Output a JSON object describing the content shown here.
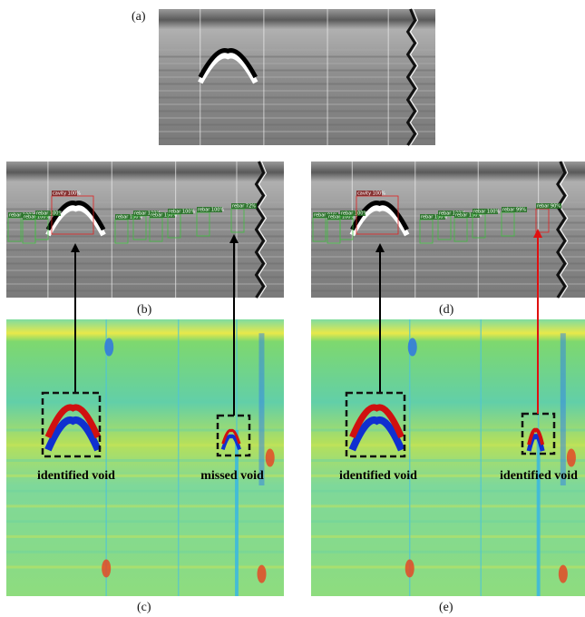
{
  "panels": {
    "a": {
      "label": "(a)"
    },
    "b": {
      "label": "(b)",
      "detections": [
        "rebar 100%",
        "rebar 100%",
        "rebar 100%",
        "cavity 100%",
        "rebar 100%",
        "rebar 100%",
        "rebar 100%",
        "rebar 100%",
        "rebar 100%",
        "rebar 72%"
      ]
    },
    "c": {
      "label": "(c)",
      "annotations": [
        "identified void",
        "missed void"
      ]
    },
    "d": {
      "label": "(d)",
      "detections": [
        "rebar 81%",
        "rebar 100%",
        "rebar 100%",
        "cavity 100%",
        "rebar 100%",
        "rebar 100%",
        "rebar 100%",
        "rebar 100%",
        "rebar 99%",
        "rebar 90%"
      ]
    },
    "e": {
      "label": "(e)",
      "annotations": [
        "identified void",
        "identified void"
      ]
    }
  }
}
